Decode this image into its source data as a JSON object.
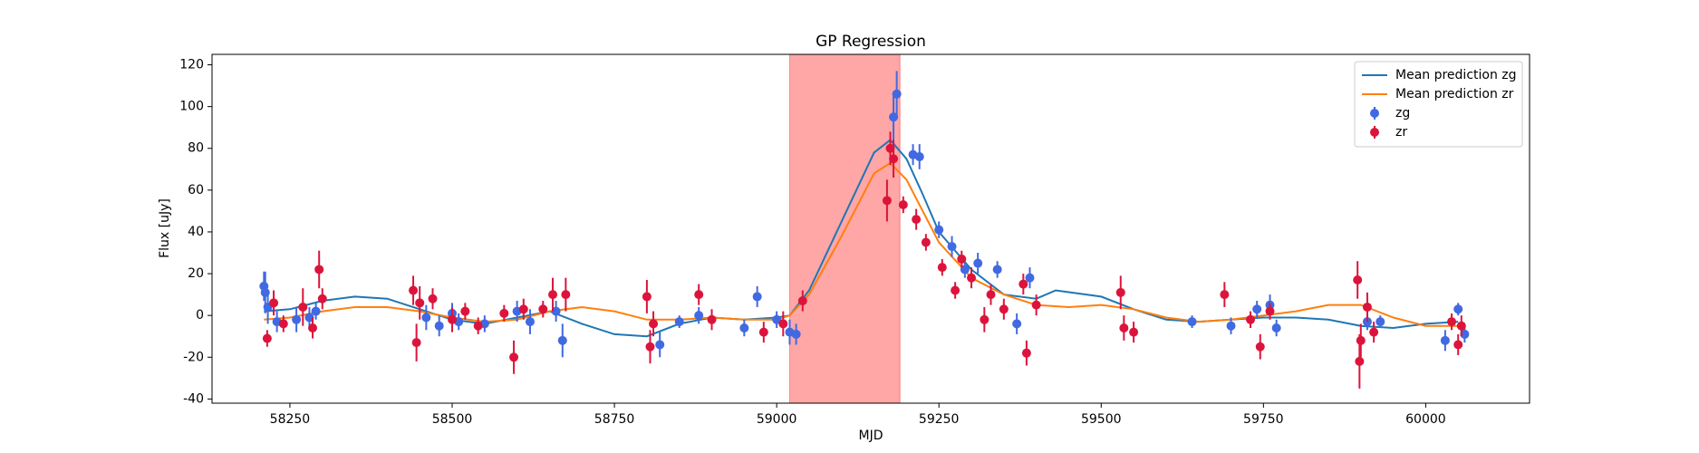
{
  "chart_data": {
    "type": "errorbar",
    "title": "GP Regression",
    "x_label": "MJD",
    "y_label": "Flux [uJy]",
    "xlim": [
      58130,
      60160
    ],
    "ylim": [
      -42,
      125
    ],
    "xticks": [
      58250,
      58500,
      58750,
      59000,
      59250,
      59500,
      59750,
      60000
    ],
    "yticks": [
      -40,
      -20,
      0,
      20,
      40,
      60,
      80,
      100,
      120
    ],
    "legend": "upper right",
    "span": {
      "range": [
        59020,
        59190
      ],
      "color": "#ff0000"
    },
    "lines": [
      {
        "name": "Mean prediction zg",
        "color": "#1f77b4",
        "x": [
          58210,
          58250,
          58300,
          58350,
          58400,
          58450,
          58500,
          58550,
          58600,
          58650,
          58700,
          58750,
          58800,
          58850,
          58900,
          58950,
          59000,
          59020,
          59050,
          59100,
          59150,
          59175,
          59200,
          59225,
          59250,
          59300,
          59350,
          59400,
          59430,
          59500,
          59550,
          59600,
          59650,
          59700,
          59750,
          59800,
          59850,
          59900,
          59950,
          60000,
          60050
        ],
        "values": [
          2,
          3,
          7,
          9,
          8,
          3,
          -2,
          -4,
          -1,
          2,
          -4,
          -9,
          -10,
          -4,
          -1,
          -2,
          -1,
          0,
          12,
          45,
          78,
          84,
          75,
          58,
          40,
          22,
          10,
          8,
          12,
          9,
          3,
          -2,
          -3,
          -2,
          -1,
          -1,
          -2,
          -5,
          -6,
          -4,
          -3
        ]
      },
      {
        "name": "Mean prediction zr",
        "color": "#ff7f0e",
        "x": [
          58210,
          58250,
          58300,
          58350,
          58400,
          58450,
          58500,
          58550,
          58600,
          58650,
          58700,
          58750,
          58800,
          58850,
          58900,
          58950,
          59000,
          59020,
          59050,
          59100,
          59150,
          59175,
          59200,
          59225,
          59250,
          59300,
          59350,
          59400,
          59450,
          59500,
          59550,
          59600,
          59650,
          59700,
          59750,
          59800,
          59850,
          59900,
          59950,
          60000,
          60050
        ],
        "values": [
          -2,
          -1,
          2,
          4,
          4,
          2,
          -1,
          -3,
          -2,
          2,
          4,
          2,
          -2,
          -2,
          -1,
          -2,
          -2,
          0,
          10,
          38,
          68,
          73,
          65,
          50,
          35,
          18,
          10,
          5,
          4,
          5,
          3,
          -1,
          -3,
          -2,
          0,
          2,
          5,
          5,
          -1,
          -5,
          -5
        ]
      }
    ],
    "series": [
      {
        "name": "zg",
        "color": "#4169e1",
        "x": [
          58210,
          58212,
          58216,
          58230,
          58260,
          58280,
          58290,
          58460,
          58480,
          58500,
          58510,
          58550,
          58600,
          58620,
          58660,
          58670,
          58820,
          58850,
          58880,
          58950,
          58970,
          59000,
          59020,
          59030,
          59180,
          59185,
          59210,
          59220,
          59250,
          59270,
          59290,
          59310,
          59340,
          59370,
          59390,
          59640,
          59700,
          59740,
          59760,
          59770,
          59910,
          59930,
          60030,
          60050,
          60060
        ],
        "values": [
          14,
          11,
          4,
          -3,
          -2,
          -1,
          2,
          -1,
          -5,
          1,
          -3,
          -4,
          2,
          -3,
          2,
          -12,
          -14,
          -3,
          0,
          -6,
          9,
          -2,
          -8,
          -9,
          95,
          106,
          77,
          76,
          41,
          33,
          22,
          25,
          22,
          -4,
          18,
          -3,
          -5,
          3,
          5,
          -6,
          -3,
          -3,
          -12,
          3,
          -9
        ],
        "errors": [
          7,
          10,
          8,
          5,
          6,
          5,
          4,
          6,
          5,
          5,
          4,
          4,
          5,
          6,
          5,
          8,
          6,
          3,
          4,
          4,
          5,
          4,
          6,
          5,
          12,
          11,
          5,
          6,
          4,
          5,
          4,
          5,
          4,
          5,
          5,
          3,
          4,
          4,
          5,
          4,
          4,
          3,
          5,
          3,
          4
        ]
      },
      {
        "name": "zr",
        "color": "#dc143c",
        "x": [
          58215,
          58225,
          58240,
          58270,
          58285,
          58295,
          58300,
          58440,
          58445,
          58450,
          58470,
          58500,
          58520,
          58540,
          58580,
          58595,
          58610,
          58640,
          58655,
          58675,
          58800,
          58805,
          58810,
          58880,
          58900,
          58980,
          59010,
          59040,
          59170,
          59175,
          59180,
          59195,
          59215,
          59230,
          59255,
          59275,
          59285,
          59300,
          59320,
          59330,
          59350,
          59380,
          59385,
          59400,
          59530,
          59535,
          59550,
          59690,
          59730,
          59745,
          59760,
          59895,
          59898,
          59900,
          59910,
          59920,
          60040,
          60050,
          60055
        ],
        "values": [
          -11,
          6,
          -4,
          4,
          -6,
          22,
          8,
          12,
          -13,
          6,
          8,
          -2,
          2,
          -5,
          1,
          -20,
          3,
          3,
          10,
          10,
          9,
          -15,
          -4,
          10,
          -2,
          -8,
          -4,
          7,
          55,
          80,
          75,
          53,
          46,
          35,
          23,
          12,
          27,
          18,
          -2,
          10,
          3,
          15,
          -18,
          5,
          11,
          -6,
          -8,
          10,
          -2,
          -15,
          2,
          17,
          -22,
          -12,
          4,
          -8,
          -3,
          -14,
          -5
        ],
        "errors": [
          4,
          6,
          4,
          9,
          5,
          9,
          5,
          7,
          9,
          8,
          5,
          6,
          4,
          4,
          4,
          8,
          5,
          4,
          8,
          8,
          8,
          8,
          6,
          5,
          5,
          5,
          6,
          5,
          10,
          8,
          9,
          4,
          5,
          4,
          4,
          4,
          4,
          5,
          6,
          5,
          5,
          5,
          6,
          5,
          8,
          6,
          5,
          6,
          4,
          6,
          4,
          9,
          13,
          8,
          7,
          5,
          4,
          5,
          5
        ]
      }
    ]
  }
}
